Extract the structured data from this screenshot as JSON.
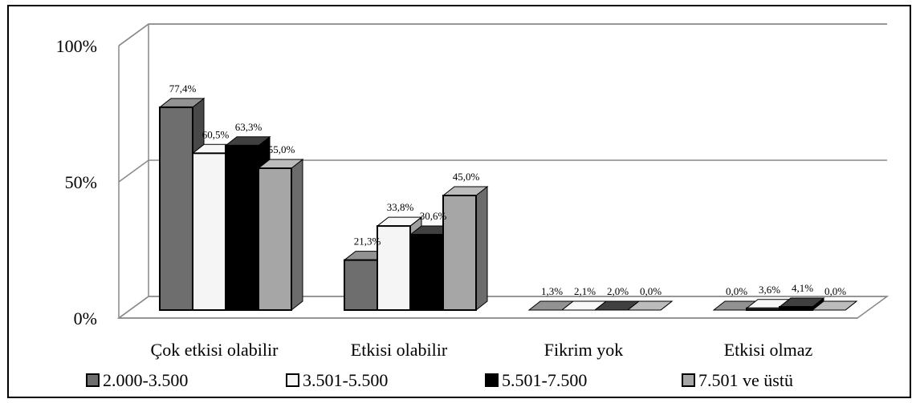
{
  "chart_data": {
    "type": "bar",
    "categories": [
      "Çok etkisi olabilir",
      "Etkisi olabilir",
      "Fikrim yok",
      "Etkisi olmaz"
    ],
    "series": [
      {
        "name": "2.000-3.500",
        "color": "#6e6e6e",
        "values": [
          77.4,
          21.3,
          1.3,
          0.0
        ],
        "labels": [
          "77,4%",
          "21,3%",
          "1,3%",
          "0,0%"
        ]
      },
      {
        "name": "3.501-5.500",
        "color": "#f5f5f5",
        "values": [
          60.5,
          33.8,
          2.1,
          3.6
        ],
        "labels": [
          "60,5%",
          "33,8%",
          "2,1%",
          "3,6%"
        ]
      },
      {
        "name": "5.501-7.500",
        "color": "#000000",
        "values": [
          63.3,
          30.6,
          2.0,
          4.1
        ],
        "labels": [
          "63,3%",
          "30,6%",
          "2,0%",
          "4,1%"
        ]
      },
      {
        "name": "7.501 ve üstü",
        "color": "#a6a6a6",
        "values": [
          55.0,
          45.0,
          0.0,
          0.0
        ],
        "labels": [
          "55,0%",
          "45,0%",
          "0,0%",
          "0,0%"
        ]
      }
    ],
    "ylim": [
      0,
      100
    ],
    "yticks": [
      0,
      50,
      100
    ],
    "ytick_labels": [
      "0%",
      "50%",
      "100%"
    ],
    "grid": true,
    "legend_position": "bottom",
    "three_d": true
  }
}
